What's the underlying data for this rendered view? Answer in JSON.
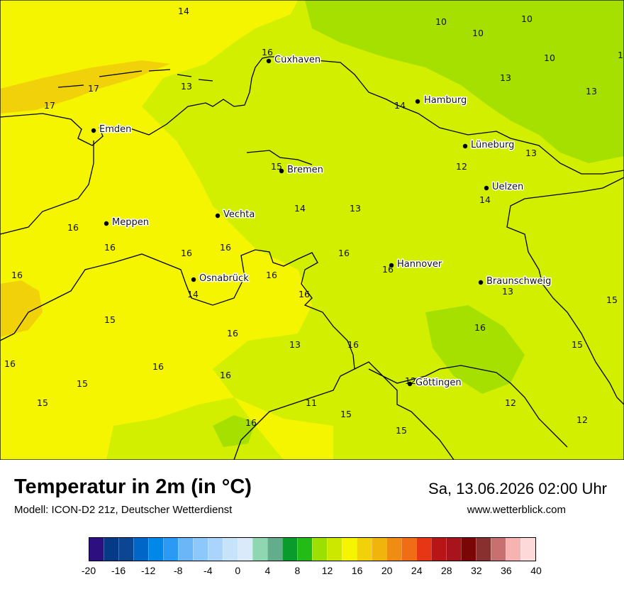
{
  "title": "Temperatur in 2m (in °C)",
  "model": "Modell: ICON-D2 21z, Deutscher Wetterdienst",
  "datetime": "Sa, 13.06.2026 02:00 Uhr",
  "website": "www.wetterblick.com",
  "colors": {
    "warm": "#f5f500",
    "mild": "#d2ef00",
    "cool": "#a6e000",
    "hot": "#f1d20a",
    "border": "#000000"
  },
  "cities": [
    {
      "name": "Cuxhaven"
    },
    {
      "name": "Hamburg"
    },
    {
      "name": "Emden"
    },
    {
      "name": "Lüneburg"
    },
    {
      "name": "Bremen"
    },
    {
      "name": "Uelzen"
    },
    {
      "name": "Vechta"
    },
    {
      "name": "Meppen"
    },
    {
      "name": "Hannover"
    },
    {
      "name": "Osnabrück"
    },
    {
      "name": "Braunschweig"
    },
    {
      "name": "Göttingen"
    }
  ],
  "values": [
    "14",
    "16",
    "10",
    "10",
    "10",
    "10",
    "11",
    "17",
    "13",
    "13",
    "17",
    "13",
    "14",
    "13",
    "12",
    "15",
    "14",
    "13",
    "14",
    "16",
    "16",
    "16",
    "16",
    "16",
    "16",
    "16",
    "16",
    "14",
    "16",
    "13",
    "15",
    "15",
    "16",
    "13",
    "16",
    "15",
    "16",
    "16",
    "16",
    "16",
    "15",
    "12",
    "15",
    "11",
    "12",
    "15",
    "16",
    "12",
    "15"
  ],
  "legend": {
    "colors": [
      "#2e0f7f",
      "#063a86",
      "#0c4591",
      "#0066c8",
      "#0088e8",
      "#2a9af5",
      "#6bb6f7",
      "#8dc8fb",
      "#aad4fb",
      "#c6e3fc",
      "#daeafa",
      "#8fd7b0",
      "#63ad8c",
      "#0a9b2d",
      "#23bc16",
      "#9be000",
      "#cde800",
      "#f5f500",
      "#f1d20a",
      "#f0b50d",
      "#ef8d12",
      "#ef6d14",
      "#e73616",
      "#b81616",
      "#a7141c",
      "#7a0606",
      "#883030",
      "#c67070",
      "#f7b2b2",
      "#fdd9d9"
    ],
    "ticks": [
      "-20",
      "-16",
      "-12",
      "-8",
      "-4",
      "0",
      "4",
      "8",
      "12",
      "16",
      "20",
      "24",
      "28",
      "32",
      "36",
      "40"
    ]
  }
}
